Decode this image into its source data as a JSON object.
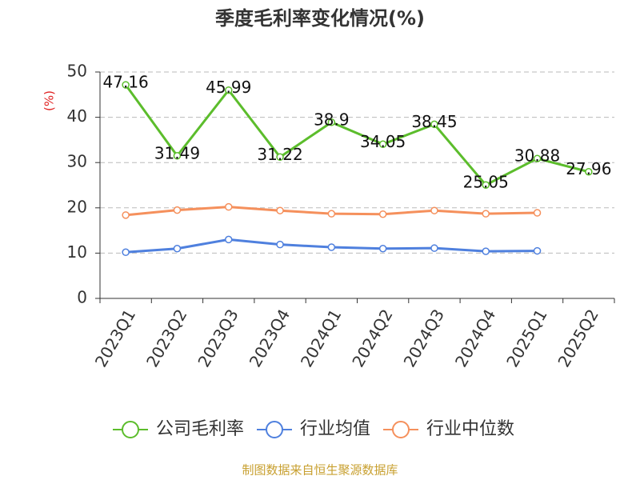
{
  "chart_data": {
    "type": "line",
    "title": "季度毛利率变化情况(%)",
    "y_label": "(%)",
    "categories": [
      "2023Q1",
      "2023Q2",
      "2023Q3",
      "2023Q4",
      "2024Q1",
      "2024Q2",
      "2024Q3",
      "2024Q4",
      "2025Q1",
      "2025Q2"
    ],
    "series": [
      {
        "name": "公司毛利率",
        "color": "#5cbd2c",
        "values": [
          47.16,
          31.49,
          45.99,
          31.22,
          38.9,
          34.05,
          38.45,
          25.05,
          30.88,
          27.96
        ],
        "show_labels": true
      },
      {
        "name": "行业均值",
        "color": "#4f80de",
        "values": [
          10.2,
          11.0,
          13.0,
          11.9,
          11.3,
          11.0,
          11.1,
          10.4,
          10.5,
          null
        ],
        "show_labels": false
      },
      {
        "name": "行业中位数",
        "color": "#f5905c",
        "values": [
          18.4,
          19.5,
          20.2,
          19.4,
          18.7,
          18.6,
          19.4,
          18.7,
          18.9,
          null
        ],
        "show_labels": false
      }
    ],
    "ylim": [
      0,
      50
    ],
    "yticks": [
      0,
      10,
      20,
      30,
      40,
      50
    ],
    "grid": true,
    "legend": "bottom",
    "source": "制图数据来自恒生聚源数据库"
  }
}
